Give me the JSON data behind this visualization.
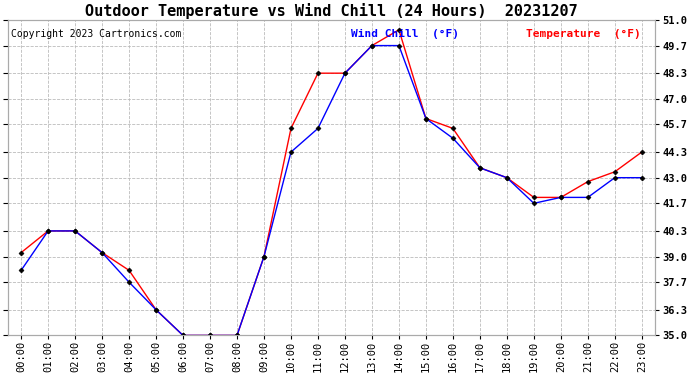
{
  "title": "Outdoor Temperature vs Wind Chill (24 Hours)  20231207",
  "copyright": "Copyright 2023 Cartronics.com",
  "legend_wind_chill": "Wind Chill  (°F)",
  "legend_temperature": "Temperature  (°F)",
  "wind_chill_color": "#0000ff",
  "temperature_color": "#ff0000",
  "background_color": "#ffffff",
  "grid_color": "#bbbbbb",
  "hours": [
    "00:00",
    "01:00",
    "02:00",
    "03:00",
    "04:00",
    "05:00",
    "06:00",
    "07:00",
    "08:00",
    "09:00",
    "10:00",
    "11:00",
    "12:00",
    "13:00",
    "14:00",
    "15:00",
    "16:00",
    "17:00",
    "18:00",
    "19:00",
    "20:00",
    "21:00",
    "22:00",
    "23:00"
  ],
  "temperature": [
    39.2,
    40.3,
    40.3,
    39.2,
    38.3,
    36.3,
    35.0,
    35.0,
    35.0,
    39.0,
    45.5,
    48.3,
    48.3,
    49.7,
    50.5,
    46.0,
    45.5,
    43.5,
    43.0,
    42.0,
    42.0,
    42.8,
    43.3,
    44.3
  ],
  "wind_chill": [
    38.3,
    40.3,
    40.3,
    39.2,
    37.7,
    36.3,
    35.0,
    35.0,
    35.0,
    39.0,
    44.3,
    45.5,
    48.3,
    49.7,
    49.7,
    46.0,
    45.0,
    43.5,
    43.0,
    41.7,
    42.0,
    42.0,
    43.0,
    43.0
  ],
  "ylim_min": 35.0,
  "ylim_max": 51.0,
  "yticks": [
    35.0,
    36.3,
    37.7,
    39.0,
    40.3,
    41.7,
    43.0,
    44.3,
    45.7,
    47.0,
    48.3,
    49.7,
    51.0
  ],
  "title_fontsize": 11,
  "tick_fontsize": 7.5,
  "copyright_fontsize": 7,
  "legend_fontsize": 8
}
